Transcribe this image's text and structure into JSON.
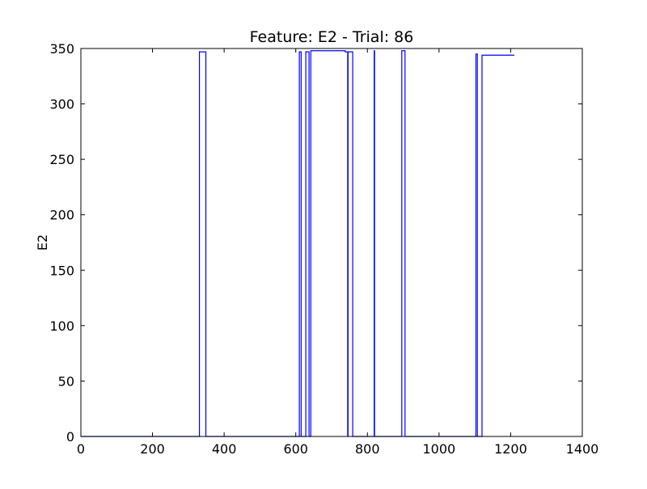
{
  "chart_data": {
    "type": "line",
    "title": "Feature: E2 - Trial: 86",
    "xlabel": "",
    "ylabel": "E2",
    "xlim": [
      0,
      1400
    ],
    "ylim": [
      0,
      350
    ],
    "xticks": [
      0,
      200,
      400,
      600,
      800,
      1000,
      1200,
      1400
    ],
    "yticks": [
      0,
      50,
      100,
      150,
      200,
      250,
      300,
      350
    ],
    "grid": false,
    "legend": "none",
    "colors": {
      "series": "#0000ff",
      "axes": "#000000",
      "background": "#ffffff"
    },
    "series": [
      {
        "x": [
          0,
          331,
          331,
          349,
          349,
          610,
          610,
          615,
          615,
          628,
          628,
          637,
          637,
          642,
          642,
          738,
          738,
          745,
          745,
          746,
          746,
          759,
          759,
          819,
          819,
          820,
          820,
          896,
          896,
          905,
          905,
          1103,
          1103,
          1107,
          1107,
          1120,
          1120,
          1210
        ],
        "y": [
          0,
          0,
          347,
          347,
          0,
          0,
          347,
          347,
          0,
          0,
          347,
          347,
          0,
          0,
          348,
          348,
          347,
          347,
          0,
          0,
          347,
          347,
          0,
          0,
          348,
          348,
          0,
          0,
          348,
          348,
          0,
          0,
          345,
          345,
          0,
          0,
          344,
          344
        ]
      }
    ]
  }
}
